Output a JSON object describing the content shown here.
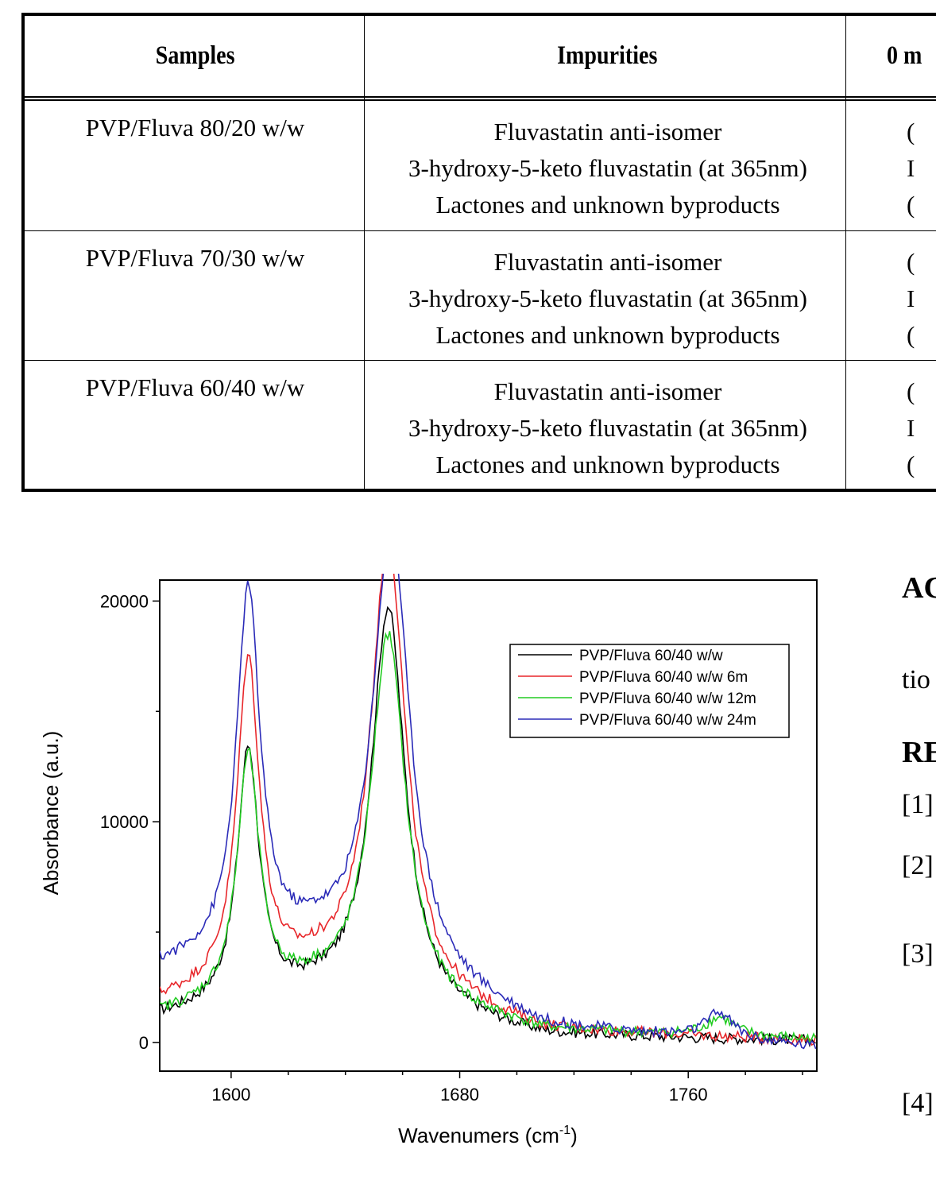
{
  "table": {
    "headers": [
      "Samples",
      "Impurities",
      "0 m"
    ],
    "rows": [
      {
        "sample": "PVP/Fluva 80/20 w/w",
        "impurities": [
          "Fluvastatin anti-isomer",
          "3-hydroxy-5-keto fluvastatin (at 365nm)",
          "Lactones and unknown byproducts"
        ],
        "cut_values": [
          "(",
          "I",
          "("
        ]
      },
      {
        "sample": "PVP/Fluva 70/30 w/w",
        "impurities": [
          "Fluvastatin anti-isomer",
          "3-hydroxy-5-keto fluvastatin (at 365nm)",
          "Lactones and unknown byproducts"
        ],
        "cut_values": [
          "(",
          "I",
          "("
        ]
      },
      {
        "sample": "PVP/Fluva 60/40 w/w",
        "impurities": [
          "Fluvastatin anti-isomer",
          "3-hydroxy-5-keto fluvastatin (at 365nm)",
          "Lactones and unknown byproducts"
        ],
        "cut_values": [
          "(",
          "I",
          "("
        ]
      }
    ]
  },
  "chart_data": {
    "type": "line",
    "xlabel": "Wavenumers (cm",
    "xlabel_sup": "-1",
    "xlabel_end": ")",
    "ylabel": "Absorbance (a.u.)",
    "xlim": [
      1575,
      1805
    ],
    "ylim": [
      -1300,
      20950
    ],
    "xticks": [
      1600,
      1680,
      1760
    ],
    "yticks": [
      0,
      10000,
      20000
    ],
    "legend_position": "top-right",
    "grid": false,
    "series": [
      {
        "name": "PVP/Fluva 60/40 w/w",
        "color": "#000000",
        "peaks": [
          {
            "x": 1606,
            "y": 11500,
            "w": 4.6
          },
          {
            "x": 1655,
            "y": 18200,
            "w": 7.2
          },
          {
            "x": 1771,
            "y": 0,
            "w": 6
          }
        ],
        "baseline": [
          {
            "x": 1575,
            "y": 1100
          },
          {
            "x": 1630,
            "y": 2000
          },
          {
            "x": 1710,
            "y": 250
          },
          {
            "x": 1805,
            "y": 50
          }
        ]
      },
      {
        "name": "PVP/Fluva 60/40 w/w 6m",
        "color": "#e8272b",
        "peaks": [
          {
            "x": 1606,
            "y": 14700,
            "w": 4.8
          },
          {
            "x": 1655,
            "y": 20500,
            "w": 7.4
          },
          {
            "x": 1771,
            "y": 0,
            "w": 6
          }
        ],
        "baseline": [
          {
            "x": 1575,
            "y": 1800
          },
          {
            "x": 1630,
            "y": 2900
          },
          {
            "x": 1710,
            "y": 450
          },
          {
            "x": 1805,
            "y": 60
          }
        ]
      },
      {
        "name": "PVP/Fluva 60/40 w/w 12m",
        "color": "#22cc22",
        "peaks": [
          {
            "x": 1606,
            "y": 11000,
            "w": 4.7
          },
          {
            "x": 1655,
            "y": 16700,
            "w": 7.3
          },
          {
            "x": 1771,
            "y": 850,
            "w": 6
          }
        ],
        "baseline": [
          {
            "x": 1575,
            "y": 1200
          },
          {
            "x": 1630,
            "y": 2300
          },
          {
            "x": 1710,
            "y": 450
          },
          {
            "x": 1805,
            "y": 100
          }
        ]
      },
      {
        "name": "PVP/Fluva 60/40 w/w 24m",
        "color": "#2b2bb8",
        "peaks": [
          {
            "x": 1606,
            "y": 16500,
            "w": 5.0
          },
          {
            "x": 1656,
            "y": 20300,
            "w": 7.8
          },
          {
            "x": 1771,
            "y": 1200,
            "w": 6
          }
        ],
        "baseline": [
          {
            "x": 1575,
            "y": 3300
          },
          {
            "x": 1630,
            "y": 4200
          },
          {
            "x": 1710,
            "y": 600
          },
          {
            "x": 1805,
            "y": -250
          }
        ]
      }
    ]
  },
  "right_fragments": {
    "heading1": "AC",
    "text1": "tio",
    "heading2": "RE",
    "refs": [
      "[1]",
      "[2]",
      "[3]",
      "[4]"
    ]
  }
}
